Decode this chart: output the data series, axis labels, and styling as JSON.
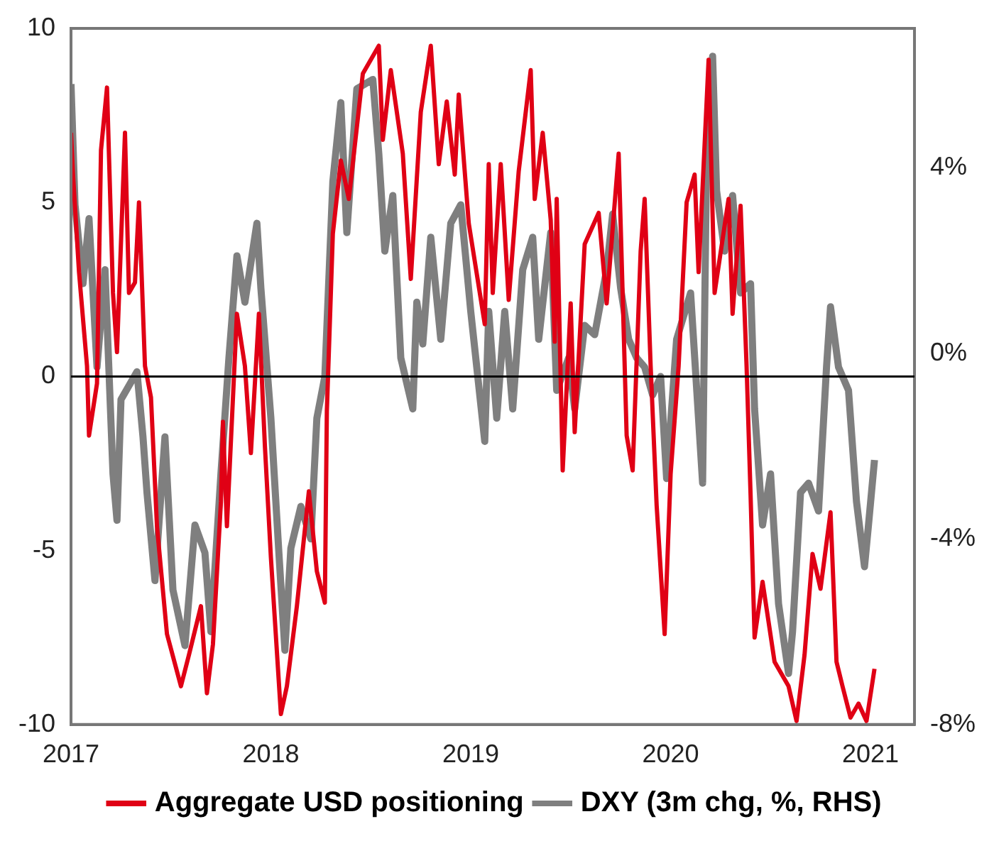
{
  "chart_data": {
    "type": "line",
    "xlim": [
      2017,
      2021.22
    ],
    "xticks": [
      2017,
      2018,
      2019,
      2020,
      2021
    ],
    "ylim": [
      -10,
      10
    ],
    "yticks": [
      -10,
      -5,
      0,
      5,
      10
    ],
    "y2lim": [
      -8,
      7
    ],
    "y2ticks": [
      {
        "value": -8,
        "label": "-8%"
      },
      {
        "value": -4,
        "label": "-4%"
      },
      {
        "value": 0,
        "label": "0%"
      },
      {
        "value": 4,
        "label": "4%"
      }
    ],
    "grid": false,
    "legend": "bottom",
    "marker": "none",
    "line_style": "solid",
    "ref_lines": [
      {
        "axis": "y",
        "value": 0,
        "color": "#000000"
      }
    ],
    "series": [
      {
        "name": "Aggregate USD positioning",
        "color": "#e00015",
        "x": [
          2017.0,
          2017.01,
          2017.04,
          2017.08,
          2017.09,
          2017.13,
          2017.15,
          2017.18,
          2017.21,
          2017.23,
          2017.27,
          2017.29,
          2017.32,
          2017.34,
          2017.37,
          2017.4,
          2017.43,
          2017.48,
          2017.55,
          2017.59,
          2017.65,
          2017.68,
          2017.71,
          2017.75,
          2017.76,
          2017.78,
          2017.83,
          2017.87,
          2017.9,
          2017.94,
          2017.97,
          2018.0,
          2018.05,
          2018.08,
          2018.13,
          2018.19,
          2018.23,
          2018.27,
          2018.28,
          2018.31,
          2018.35,
          2018.39,
          2018.46,
          2018.54,
          2018.56,
          2018.6,
          2018.66,
          2018.7,
          2018.75,
          2018.8,
          2018.84,
          2018.88,
          2018.92,
          2018.94,
          2018.99,
          2019.07,
          2019.09,
          2019.11,
          2019.15,
          2019.19,
          2019.24,
          2019.3,
          2019.32,
          2019.36,
          2019.4,
          2019.42,
          2019.43,
          2019.46,
          2019.5,
          2019.52,
          2019.57,
          2019.64,
          2019.68,
          2019.74,
          2019.78,
          2019.81,
          2019.85,
          2019.87,
          2019.9,
          2019.93,
          2019.97,
          2020.0,
          2020.04,
          2020.08,
          2020.12,
          2020.14,
          2020.19,
          2020.22,
          2020.29,
          2020.31,
          2020.35,
          2020.38,
          2020.4,
          2020.42,
          2020.46,
          2020.52,
          2020.59,
          2020.63,
          2020.67,
          2020.71,
          2020.75,
          2020.8,
          2020.83,
          2020.86,
          2020.9,
          2020.94,
          2020.98,
          2021.02
        ],
        "values": [
          7.0,
          5.8,
          3.0,
          0.3,
          -1.7,
          -0.2,
          6.5,
          8.3,
          2.4,
          0.7,
          7.0,
          2.4,
          2.7,
          5.0,
          0.3,
          -0.6,
          -4.3,
          -7.4,
          -8.9,
          -8.0,
          -6.6,
          -9.1,
          -7.7,
          -3.6,
          -1.3,
          -4.3,
          1.8,
          0.3,
          -2.2,
          1.8,
          -2.0,
          -5.2,
          -9.7,
          -8.9,
          -6.6,
          -3.3,
          -5.6,
          -6.5,
          -1.0,
          4.1,
          6.2,
          5.1,
          8.7,
          9.5,
          6.8,
          8.8,
          6.4,
          2.8,
          7.6,
          9.5,
          6.1,
          7.9,
          5.8,
          8.1,
          4.4,
          1.5,
          6.1,
          2.4,
          6.1,
          2.2,
          5.9,
          8.8,
          5.1,
          7.0,
          4.5,
          1.0,
          5.1,
          -2.7,
          2.1,
          -1.6,
          3.8,
          4.7,
          2.1,
          6.4,
          -1.7,
          -2.7,
          3.6,
          5.1,
          0.3,
          -3.7,
          -7.4,
          -2.8,
          0.3,
          5.0,
          5.8,
          3.0,
          9.1,
          2.4,
          5.1,
          1.8,
          4.9,
          0.3,
          -3.4,
          -7.5,
          -5.9,
          -8.2,
          -8.9,
          -9.9,
          -8.0,
          -5.1,
          -6.1,
          -3.9,
          -8.2,
          -8.9,
          -9.8,
          -9.4,
          -9.9,
          -8.4
        ]
      },
      {
        "name": "DXY (3m chg, %, RHS)",
        "color": "#7f7f7f",
        "axis": "y2",
        "x": [
          2017.0,
          2017.02,
          2017.06,
          2017.09,
          2017.13,
          2017.17,
          2017.21,
          2017.23,
          2017.25,
          2017.33,
          2017.36,
          2017.38,
          2017.42,
          2017.47,
          2017.51,
          2017.57,
          2017.62,
          2017.67,
          2017.7,
          2017.75,
          2017.79,
          2017.83,
          2017.87,
          2017.93,
          2017.95,
          2018.0,
          2018.04,
          2018.07,
          2018.1,
          2018.15,
          2018.2,
          2018.23,
          2018.27,
          2018.31,
          2018.35,
          2018.38,
          2018.43,
          2018.51,
          2018.54,
          2018.57,
          2018.61,
          2018.65,
          2018.71,
          2018.73,
          2018.76,
          2018.8,
          2018.85,
          2018.9,
          2018.95,
          2019.0,
          2019.07,
          2019.09,
          2019.13,
          2019.17,
          2019.21,
          2019.26,
          2019.31,
          2019.34,
          2019.4,
          2019.43,
          2019.49,
          2019.52,
          2019.57,
          2019.62,
          2019.68,
          2019.71,
          2019.75,
          2019.79,
          2019.83,
          2019.87,
          2019.91,
          2019.95,
          2019.98,
          2020.03,
          2020.1,
          2020.16,
          2020.18,
          2020.21,
          2020.23,
          2020.27,
          2020.31,
          2020.35,
          2020.4,
          2020.42,
          2020.46,
          2020.5,
          2020.54,
          2020.59,
          2020.61,
          2020.65,
          2020.69,
          2020.74,
          2020.78,
          2020.8,
          2020.84,
          2020.89,
          2020.93,
          2020.97,
          2020.99,
          2021.02
        ],
        "values": [
          5.8,
          3.2,
          1.5,
          2.9,
          -0.3,
          1.8,
          -2.6,
          -3.6,
          -1.0,
          -0.4,
          -1.8,
          -3.0,
          -4.9,
          -1.8,
          -5.1,
          -6.3,
          -3.7,
          -4.3,
          -6.0,
          -2.6,
          -0.1,
          2.1,
          1.1,
          2.8,
          1.4,
          -1.4,
          -4.3,
          -6.4,
          -4.2,
          -3.3,
          -4.0,
          -1.4,
          -0.5,
          3.7,
          5.4,
          2.6,
          5.7,
          5.9,
          4.3,
          2.2,
          3.4,
          -0.1,
          -1.2,
          1.1,
          0.2,
          2.5,
          0.3,
          2.8,
          3.2,
          0.9,
          -1.9,
          0.9,
          -1.4,
          0.9,
          -1.2,
          1.8,
          2.5,
          0.3,
          2.6,
          -0.8,
          -0.1,
          -1.2,
          0.6,
          0.4,
          1.8,
          3.0,
          1.4,
          0.3,
          -0.1,
          -0.3,
          -0.9,
          -0.5,
          -2.7,
          0.3,
          1.3,
          -2.8,
          4.3,
          6.4,
          3.5,
          2.2,
          3.4,
          1.3,
          1.5,
          -1.2,
          -3.7,
          -2.6,
          -5.4,
          -6.9,
          -6.0,
          -3.0,
          -2.8,
          -3.4,
          -0.3,
          1.0,
          -0.3,
          -0.8,
          -3.2,
          -4.6,
          -3.7,
          -2.3
        ]
      }
    ]
  }
}
